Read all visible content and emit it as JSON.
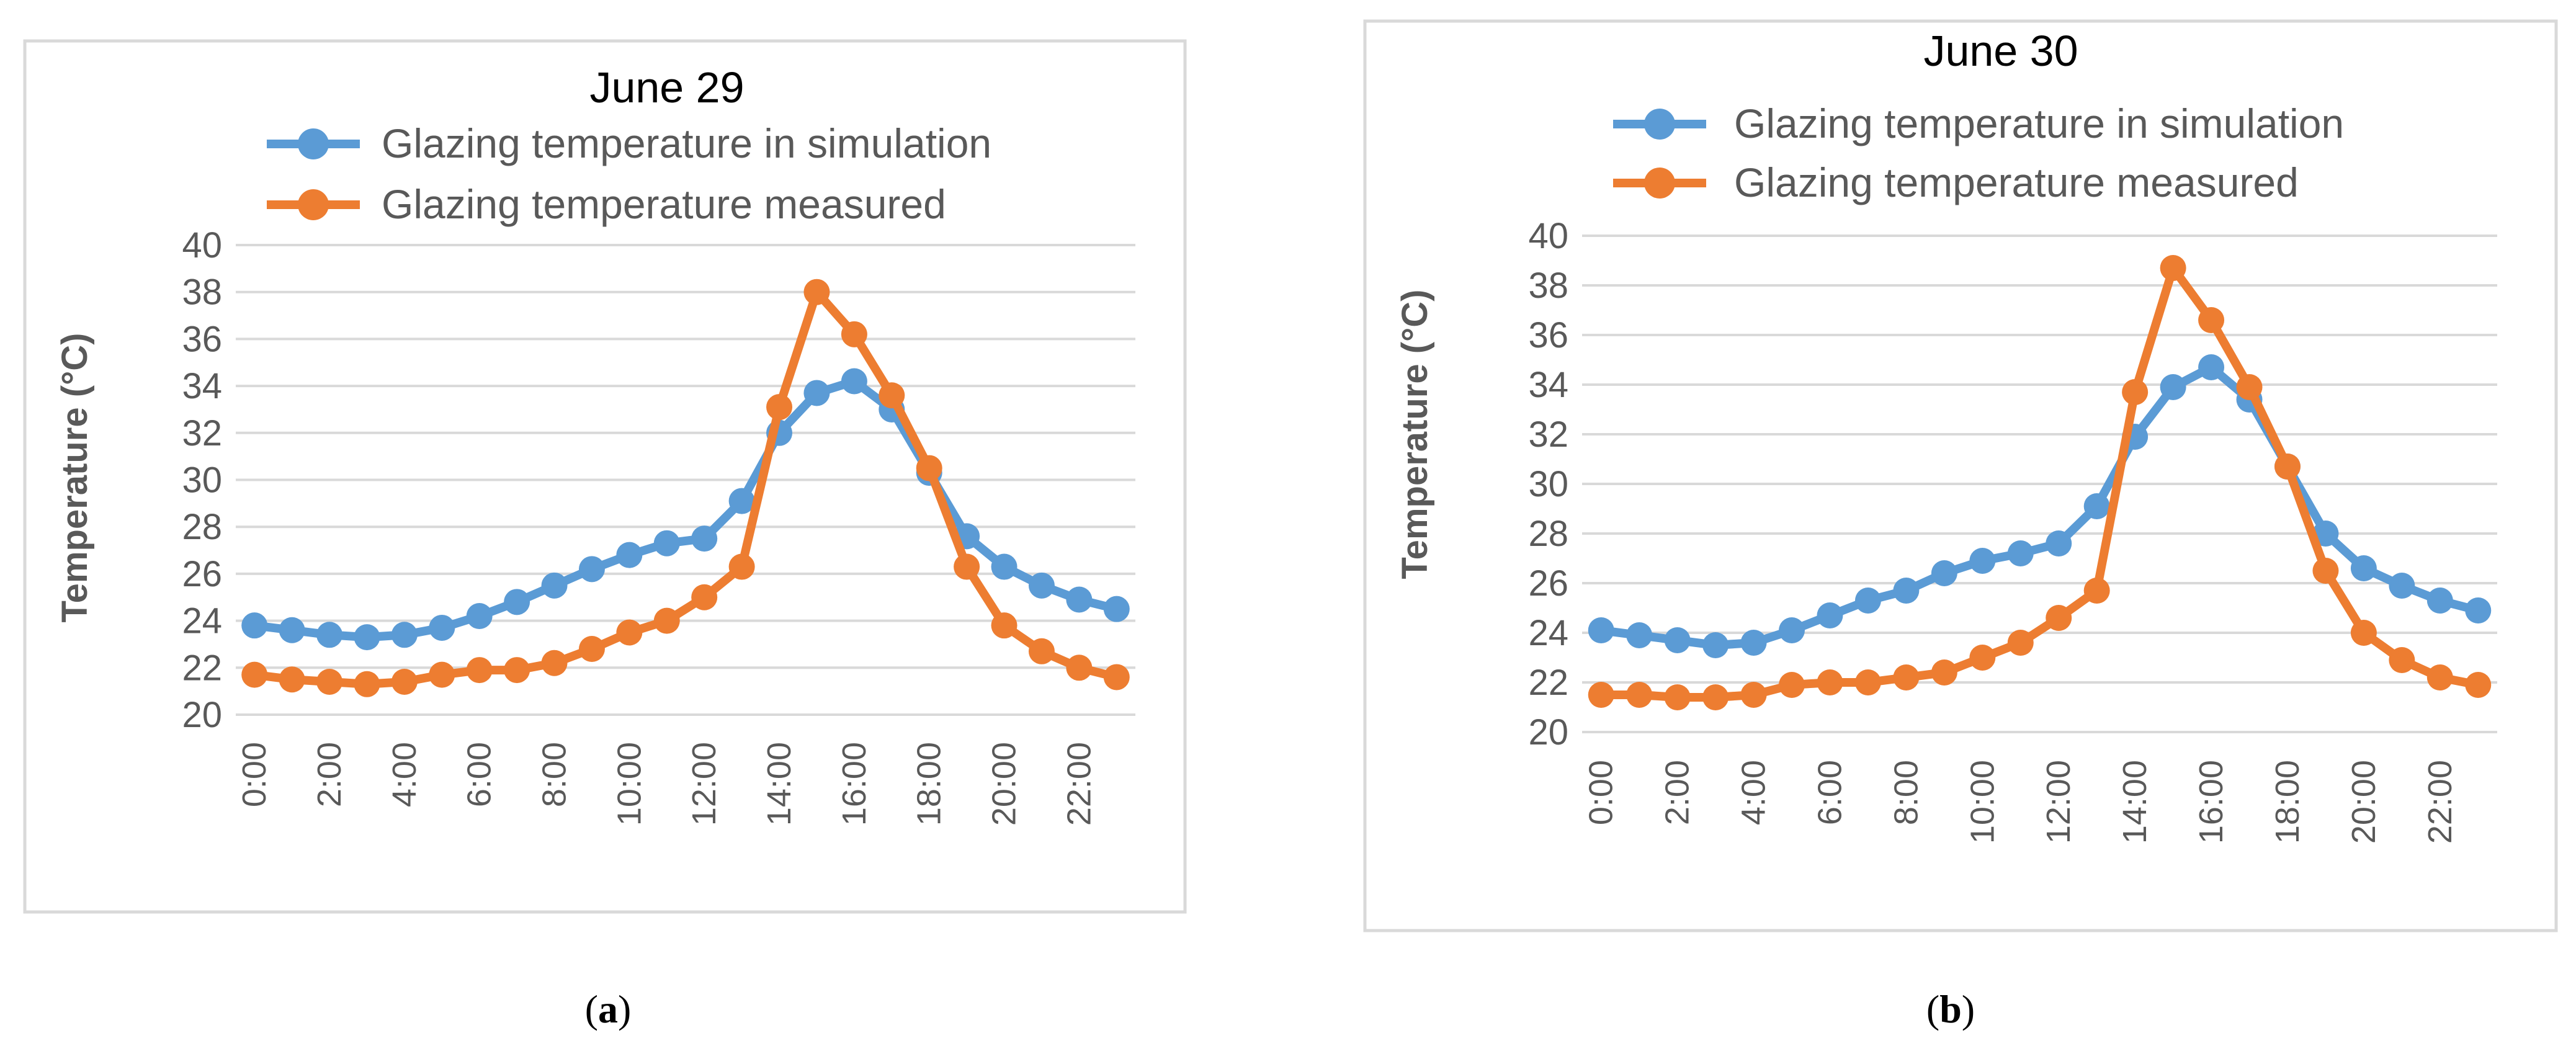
{
  "panels": [
    {
      "caption": "a",
      "chart_data": {
        "type": "line",
        "title": "June 29",
        "ylabel": "Temperature (°C)",
        "xlabel": "",
        "ylim": [
          20,
          40
        ],
        "yticks": [
          20,
          22,
          24,
          26,
          28,
          30,
          32,
          34,
          36,
          38,
          40
        ],
        "x_tick_labels": [
          "0:00",
          "2:00",
          "4:00",
          "6:00",
          "8:00",
          "10:00",
          "12:00",
          "14:00",
          "16:00",
          "18:00",
          "20:00",
          "22:00"
        ],
        "grid": true,
        "legend": "top",
        "series": [
          {
            "name": "Glazing temperature in simulation",
            "color": "#5B9BD5",
            "values": [
              23.8,
              23.6,
              23.4,
              23.3,
              23.4,
              23.7,
              24.2,
              24.8,
              25.5,
              26.2,
              26.8,
              27.3,
              27.5,
              29.1,
              32.0,
              33.7,
              34.2,
              33.0,
              30.3,
              27.6,
              26.3,
              25.5,
              24.9,
              24.5
            ]
          },
          {
            "name": "Glazing temperature measured",
            "color": "#ED7D31",
            "values": [
              21.7,
              21.5,
              21.4,
              21.3,
              21.4,
              21.7,
              21.9,
              21.9,
              22.2,
              22.8,
              23.5,
              24.0,
              25.0,
              26.3,
              33.1,
              38.0,
              36.2,
              33.6,
              30.5,
              26.3,
              23.8,
              22.7,
              22.0,
              21.6
            ]
          }
        ]
      }
    },
    {
      "caption": "b",
      "chart_data": {
        "type": "line",
        "title": "June 30",
        "ylabel": "Temperature (°C)",
        "xlabel": "",
        "ylim": [
          20,
          40
        ],
        "yticks": [
          20,
          22,
          24,
          26,
          28,
          30,
          32,
          34,
          36,
          38,
          40
        ],
        "x_tick_labels": [
          "0:00",
          "2:00",
          "4:00",
          "6:00",
          "8:00",
          "10:00",
          "12:00",
          "14:00",
          "16:00",
          "18:00",
          "20:00",
          "22:00"
        ],
        "grid": true,
        "legend": "top",
        "series": [
          {
            "name": "Glazing temperature in simulation",
            "color": "#5B9BD5",
            "values": [
              24.1,
              23.9,
              23.7,
              23.5,
              23.6,
              24.1,
              24.7,
              25.3,
              25.7,
              26.4,
              26.9,
              27.2,
              27.6,
              29.1,
              31.9,
              33.9,
              34.7,
              33.4,
              30.7,
              28.0,
              26.6,
              25.9,
              25.3,
              24.9
            ]
          },
          {
            "name": "Glazing temperature measured",
            "color": "#ED7D31",
            "values": [
              21.5,
              21.5,
              21.4,
              21.4,
              21.5,
              21.9,
              22.0,
              22.0,
              22.2,
              22.4,
              23.0,
              23.6,
              24.6,
              25.7,
              33.7,
              38.7,
              36.6,
              33.9,
              30.7,
              26.5,
              24.0,
              22.9,
              22.2,
              21.9
            ]
          }
        ]
      }
    }
  ]
}
